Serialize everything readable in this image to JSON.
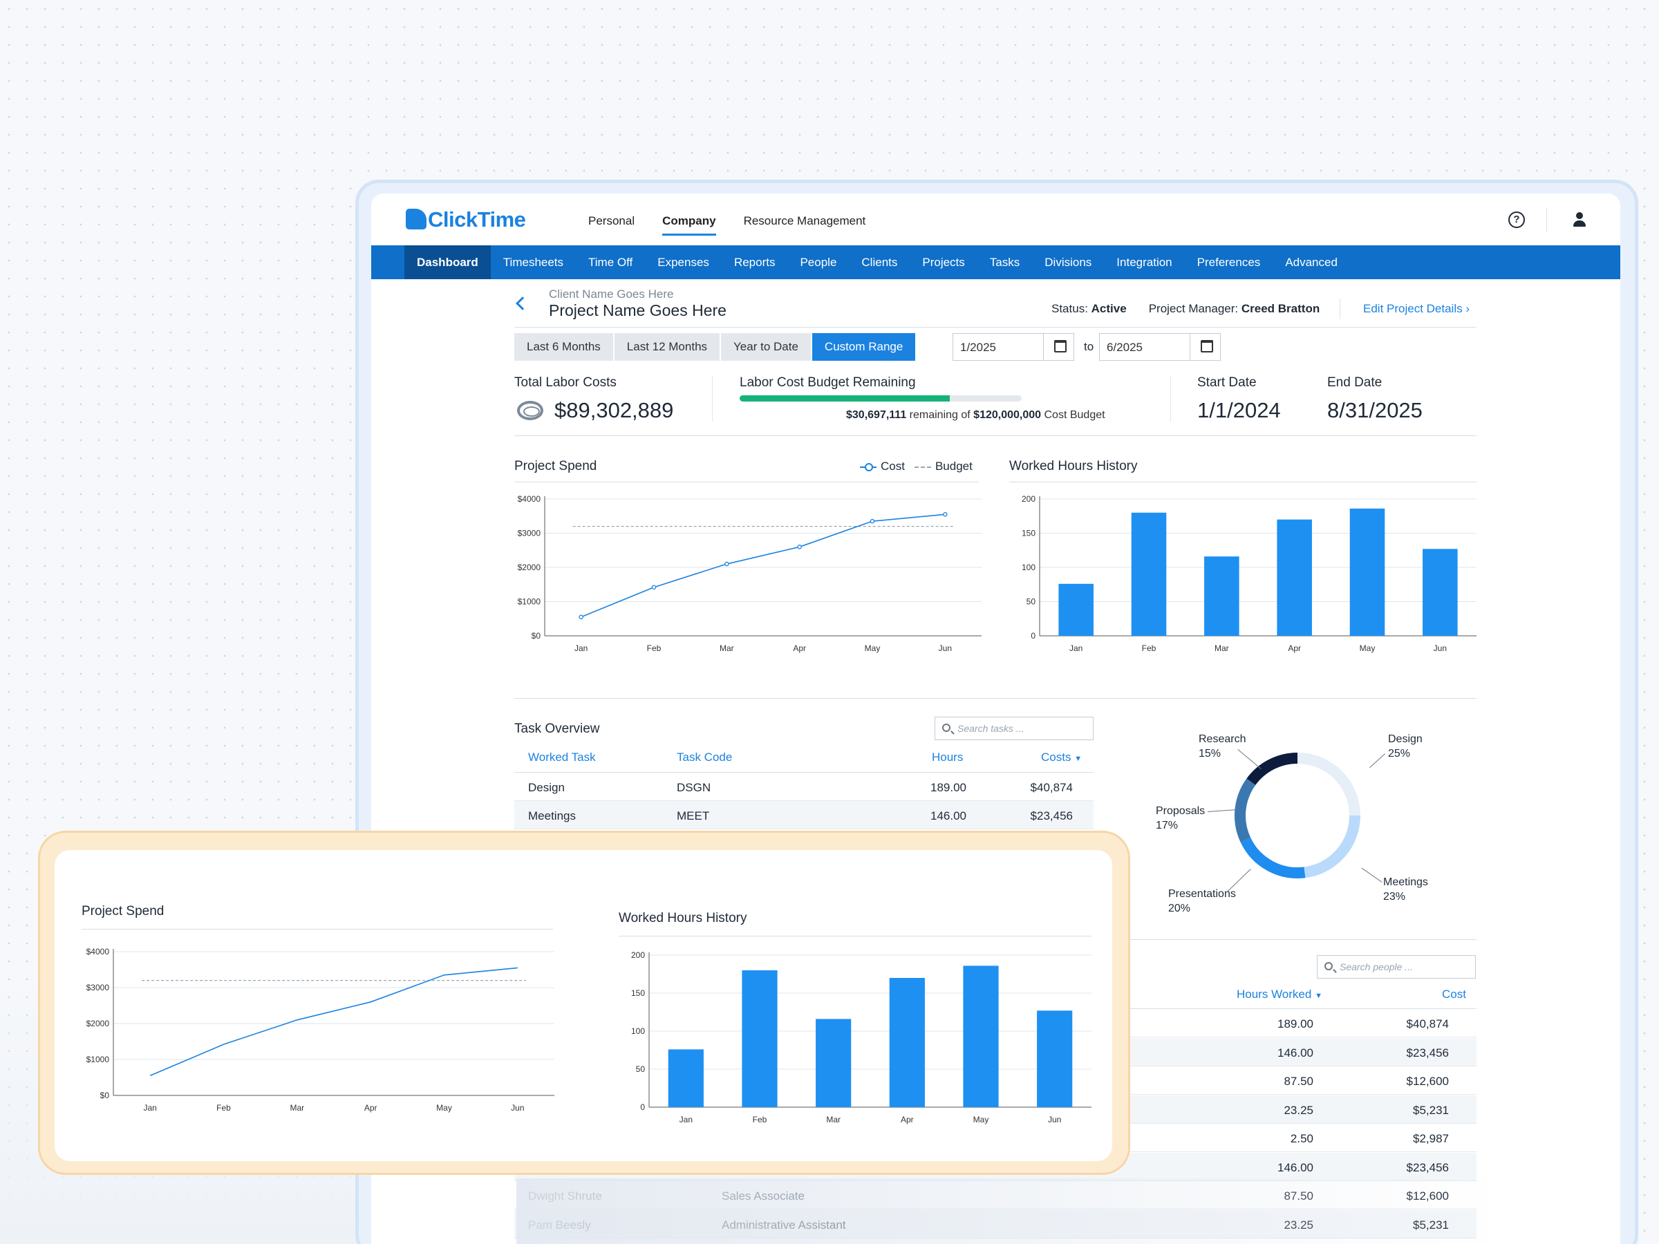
{
  "brand": {
    "name": "ClickTime",
    "accent": "#1b82e0",
    "nav_bg": "#0f6fc9",
    "progress": "#15b37a"
  },
  "topnav": {
    "items": [
      "Personal",
      "Company",
      "Resource Management"
    ],
    "active": "Company"
  },
  "mainnav": {
    "items": [
      "Dashboard",
      "Timesheets",
      "Time Off",
      "Expenses",
      "Reports",
      "People",
      "Clients",
      "Projects",
      "Tasks",
      "Divisions",
      "Integration",
      "Preferences",
      "Advanced"
    ],
    "active": "Dashboard"
  },
  "header": {
    "client": "Client Name Goes Here",
    "project": "Project Name Goes Here",
    "status_label": "Status:",
    "status_value": "Active",
    "pm_label": "Project Manager:",
    "pm_value": "Creed Bratton",
    "edit_link": "Edit Project Details"
  },
  "range": {
    "buttons": [
      "Last 6 Months",
      "Last 12 Months",
      "Year to Date",
      "Custom Range"
    ],
    "selected": "Custom Range",
    "from": "1/2025",
    "to_label": "to",
    "to": "6/2025"
  },
  "stats": {
    "labor_label": "Total Labor Costs",
    "labor_value": "$89,302,889",
    "budget_label": "Labor Cost Budget Remaining",
    "budget_fraction": 0.744,
    "budget_remaining": "$30,697,111",
    "budget_mid": "remaining of",
    "budget_total": "$120,000,000",
    "budget_suffix": "Cost Budget",
    "start_label": "Start Date",
    "start_value": "1/1/2024",
    "end_label": "End Date",
    "end_value": "8/31/2025"
  },
  "charts": {
    "spend_title": "Project Spend",
    "legend_cost": "Cost",
    "legend_budget": "Budget",
    "hours_title": "Worked Hours History"
  },
  "chart_data": [
    {
      "type": "line",
      "title": "Project Spend",
      "x": [
        "Jan",
        "Feb",
        "Mar",
        "Apr",
        "May",
        "Jun"
      ],
      "series": [
        {
          "name": "Cost",
          "values": [
            550,
            1420,
            2100,
            2600,
            3350,
            3550
          ]
        },
        {
          "name": "Budget",
          "values": [
            3200,
            3200,
            3200,
            3200,
            3200,
            3200
          ]
        }
      ],
      "yticks": [
        "$4000",
        "$3000",
        "$2000",
        "$1000",
        "$0"
      ],
      "ylim": [
        0,
        4000
      ]
    },
    {
      "type": "bar",
      "title": "Worked Hours History",
      "categories": [
        "Jan",
        "Feb",
        "Mar",
        "Apr",
        "May",
        "Jun"
      ],
      "values": [
        76,
        180,
        116,
        170,
        186,
        127
      ],
      "yticks": [
        "200",
        "150",
        "100",
        "50",
        "0"
      ],
      "ylim": [
        0,
        200
      ]
    },
    {
      "type": "pie",
      "labels": [
        "Design",
        "Meetings",
        "Presentations",
        "Proposals",
        "Research"
      ],
      "values": [
        25,
        23,
        20,
        17,
        15
      ],
      "pct_labels": [
        "25%",
        "23%",
        "20%",
        "17%",
        "15%"
      ],
      "colors": [
        "#e6eef7",
        "#b9dafb",
        "#1f8cf0",
        "#3b78b0",
        "#0d1b3d"
      ]
    }
  ],
  "tasks": {
    "title": "Task Overview",
    "search_placeholder": "Search tasks ...",
    "headers": [
      "Worked Task",
      "Task Code",
      "Hours",
      "Costs"
    ],
    "rows": [
      [
        "Design",
        "DSGN",
        "189.00",
        "$40,874"
      ],
      [
        "Meetings",
        "MEET",
        "146.00",
        "$23,456"
      ]
    ]
  },
  "people": {
    "search_placeholder": "Search people ...",
    "headers": [
      "Hours Worked",
      "Cost"
    ],
    "rows": [
      [
        "",
        "",
        "189.00",
        "$40,874"
      ],
      [
        "",
        "",
        "146.00",
        "$23,456"
      ],
      [
        "",
        "",
        "87.50",
        "$12,600"
      ],
      [
        "",
        "",
        "23.25",
        "$5,231"
      ],
      [
        "",
        "",
        "2.50",
        "$2,987"
      ],
      [
        "",
        "",
        "146.00",
        "$23,456"
      ],
      [
        "Dwight Shrute",
        "Sales Associate",
        "87.50",
        "$12,600"
      ],
      [
        "Pam Beesly",
        "Administrative Assistant",
        "23.25",
        "$5,231"
      ]
    ]
  }
}
